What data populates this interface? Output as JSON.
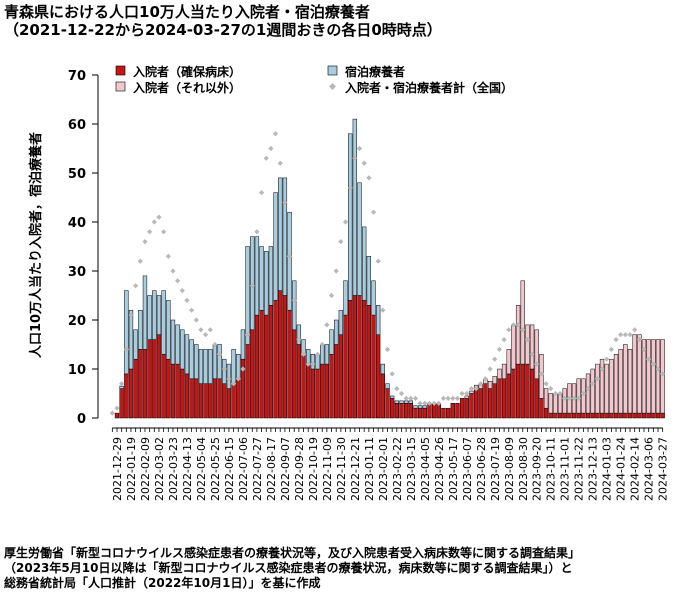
{
  "title": {
    "line1": "青森県における人口10万人当たり入院者・宿泊療養者",
    "line2": "（2021-12-22から2024-03-27の1週間おきの各日0時時点）"
  },
  "footer": {
    "line1": "厚生労働省「新型コロナウイルス感染症患者の療養状況等，及び入院患者受入病床数等に関する調査結果」",
    "line2": "（2023年5月10日以降は「新型コロナウイルス感染症患者の療養状況，病床数等に関する調査結果」）と",
    "line3": "総務省統計局「人口推計（2022年10月1日）」を基に作成"
  },
  "colors": {
    "hospital_severe": "#c81414",
    "hospital_other": "#f4c7cf",
    "hotel": "#a9cde0",
    "national_total": "#b8b8b8"
  },
  "chart_data": {
    "type": "bar",
    "stacked": true,
    "ylabel": "人口10万人当たり入院者，宿泊療養者",
    "ylim": [
      0,
      70
    ],
    "yticks": [
      0,
      10,
      20,
      30,
      40,
      50,
      60,
      70
    ],
    "grid": false,
    "legend_position": "top",
    "x_tick_labels": [
      "2021-12-29",
      "2022-01-19",
      "2022-02-09",
      "2022-03-02",
      "2022-03-23",
      "2022-04-13",
      "2022-05-04",
      "2022-05-25",
      "2022-06-15",
      "2022-07-06",
      "2022-07-27",
      "2022-08-17",
      "2022-09-07",
      "2022-09-28",
      "2022-10-19",
      "2022-11-09",
      "2022-11-30",
      "2022-12-21",
      "2023-01-11",
      "2023-02-01",
      "2023-02-22",
      "2023-03-15",
      "2023-04-05",
      "2023-04-26",
      "2023-05-17",
      "2023-06-07",
      "2023-06-28",
      "2023-07-19",
      "2023-08-09",
      "2023-08-30",
      "2023-09-20",
      "2023-10-11",
      "2023-11-01",
      "2023-11-22",
      "2023-12-13",
      "2024-01-03",
      "2024-01-24",
      "2024-02-14",
      "2024-03-06",
      "2024-03-27"
    ],
    "x": [
      "2021-12-22",
      "2021-12-29",
      "2022-01-05",
      "2022-01-12",
      "2022-01-19",
      "2022-01-26",
      "2022-02-02",
      "2022-02-09",
      "2022-02-16",
      "2022-02-23",
      "2022-03-02",
      "2022-03-09",
      "2022-03-16",
      "2022-03-23",
      "2022-03-30",
      "2022-04-06",
      "2022-04-13",
      "2022-04-20",
      "2022-04-27",
      "2022-05-04",
      "2022-05-11",
      "2022-05-18",
      "2022-05-25",
      "2022-06-01",
      "2022-06-08",
      "2022-06-15",
      "2022-06-22",
      "2022-06-29",
      "2022-07-06",
      "2022-07-13",
      "2022-07-20",
      "2022-07-27",
      "2022-08-03",
      "2022-08-10",
      "2022-08-17",
      "2022-08-24",
      "2022-08-31",
      "2022-09-07",
      "2022-09-14",
      "2022-09-21",
      "2022-09-28",
      "2022-10-05",
      "2022-10-12",
      "2022-10-19",
      "2022-10-26",
      "2022-11-02",
      "2022-11-09",
      "2022-11-16",
      "2022-11-23",
      "2022-11-30",
      "2022-12-07",
      "2022-12-14",
      "2022-12-21",
      "2022-12-28",
      "2023-01-04",
      "2023-01-11",
      "2023-01-18",
      "2023-01-25",
      "2023-02-01",
      "2023-02-08",
      "2023-02-15",
      "2023-02-22",
      "2023-03-01",
      "2023-03-08",
      "2023-03-15",
      "2023-03-22",
      "2023-03-29",
      "2023-04-05",
      "2023-04-12",
      "2023-04-19",
      "2023-04-26",
      "2023-05-03",
      "2023-05-10",
      "2023-05-17",
      "2023-05-24",
      "2023-05-31",
      "2023-06-07",
      "2023-06-14",
      "2023-06-21",
      "2023-06-28",
      "2023-07-05",
      "2023-07-12",
      "2023-07-19",
      "2023-07-26",
      "2023-08-02",
      "2023-08-09",
      "2023-08-16",
      "2023-08-23",
      "2023-08-30",
      "2023-09-06",
      "2023-09-13",
      "2023-09-20",
      "2023-09-27",
      "2023-10-04",
      "2023-10-11",
      "2023-10-18",
      "2023-10-25",
      "2023-11-01",
      "2023-11-08",
      "2023-11-15",
      "2023-11-22",
      "2023-11-29",
      "2023-12-06",
      "2023-12-13",
      "2023-12-20",
      "2023-12-27",
      "2024-01-03",
      "2024-01-10",
      "2024-01-17",
      "2024-01-24",
      "2024-01-31",
      "2024-02-07",
      "2024-02-14",
      "2024-02-21",
      "2024-02-28",
      "2024-03-06",
      "2024-03-13",
      "2024-03-20",
      "2024-03-27"
    ],
    "series": [
      {
        "name": "入院者（確保病床）",
        "values": [
          0,
          1,
          6,
          9,
          10,
          12,
          14,
          14,
          16,
          16,
          17,
          13,
          12,
          11,
          11,
          10,
          9,
          8,
          8,
          7,
          7,
          7,
          8,
          8,
          7,
          6,
          7,
          8,
          12,
          15,
          18,
          21,
          22,
          21,
          23,
          24,
          26,
          25,
          22,
          18,
          15,
          13,
          11,
          10,
          10,
          11,
          11,
          13,
          15,
          17,
          21,
          24,
          25,
          25,
          24,
          23,
          21,
          17,
          9,
          6,
          4,
          3,
          3,
          3,
          3,
          2,
          2,
          2,
          3,
          3,
          3,
          2,
          2,
          3,
          3,
          4,
          4,
          5,
          6,
          6,
          7,
          6,
          7,
          8,
          8,
          9,
          10,
          11,
          11,
          11,
          10,
          8,
          4,
          2,
          1,
          1,
          1,
          1,
          1,
          1,
          1,
          1,
          1,
          1,
          1,
          1,
          1,
          1,
          1,
          1,
          1,
          1,
          1,
          1,
          1,
          1,
          1,
          1,
          1
        ]
      },
      {
        "name": "入院者（それ以外）",
        "values": [
          0,
          0,
          0,
          0,
          0,
          0,
          0,
          0,
          0,
          0,
          0,
          0,
          0,
          0,
          0,
          0,
          0,
          0,
          0,
          0,
          0,
          0,
          0,
          0,
          0,
          0,
          0,
          0,
          0,
          0,
          0,
          0,
          0,
          0,
          0,
          0,
          0,
          0,
          0,
          0,
          0,
          0,
          0,
          0,
          0,
          0,
          0,
          0,
          0,
          0,
          0,
          0,
          0,
          0,
          0,
          0,
          0,
          0,
          0,
          0,
          0,
          0,
          0,
          0,
          0,
          0,
          0,
          0,
          0,
          0,
          0,
          0,
          0,
          0,
          0,
          0,
          0.5,
          0.5,
          0.7,
          1,
          1,
          1.5,
          1.5,
          2,
          3,
          5,
          9,
          12,
          17,
          8,
          9,
          10,
          9,
          4,
          4,
          4,
          4,
          5,
          6,
          6,
          7,
          7,
          8,
          9,
          10,
          11,
          10,
          11,
          12,
          13,
          14,
          13,
          16,
          16,
          15,
          15,
          15,
          15,
          15
        ]
      },
      {
        "name": "宿泊療養者",
        "values": [
          0,
          0,
          0.5,
          17,
          12,
          6,
          8,
          15,
          9,
          10,
          8,
          13,
          12,
          9,
          8,
          8,
          8,
          8,
          7,
          7,
          7,
          7,
          7,
          7,
          5,
          5,
          7,
          5,
          6,
          20,
          19,
          16,
          13,
          13,
          12,
          22,
          23,
          24,
          20,
          10,
          4,
          3,
          3,
          3,
          3,
          4,
          4,
          5,
          5,
          5,
          7,
          34,
          36,
          23,
          15,
          10,
          7,
          6,
          2,
          1,
          0.5,
          0.5,
          0.5,
          0.5,
          0.5,
          0.5,
          0.5,
          0.5,
          0,
          0,
          0,
          0,
          0,
          0,
          0,
          0,
          0,
          0,
          0,
          0,
          0,
          0,
          0,
          0,
          0,
          0,
          0,
          0,
          0,
          0,
          0,
          0,
          0,
          0,
          0,
          0,
          0,
          0,
          0,
          0,
          0,
          0,
          0,
          0,
          0,
          0,
          0,
          0,
          0,
          0,
          0,
          0,
          0,
          0,
          0,
          0,
          0,
          0,
          0
        ]
      },
      {
        "name": "入院者・宿泊療養者計（全国）",
        "kind": "points",
        "values": [
          1,
          2,
          7,
          14,
          21,
          27,
          32,
          36,
          38,
          40,
          41,
          38,
          33,
          30,
          28,
          26,
          24,
          22,
          20,
          18,
          17,
          18,
          15,
          13,
          10,
          8,
          7,
          8,
          10,
          17,
          27,
          38,
          46,
          53,
          55,
          58,
          52,
          44,
          33,
          24,
          16,
          13,
          11,
          11,
          13,
          15,
          19,
          25,
          30,
          36,
          40,
          47,
          53,
          55,
          52,
          49,
          42,
          32,
          22,
          14,
          9,
          6,
          5,
          4,
          4,
          4,
          3,
          3,
          3,
          3,
          3,
          4,
          4,
          4,
          4,
          5,
          5,
          6,
          6,
          7,
          8,
          10,
          12,
          14,
          16,
          18,
          19,
          19,
          18,
          16,
          13,
          11,
          9,
          7,
          6,
          5,
          5,
          4,
          4,
          4,
          4,
          5,
          6,
          7,
          8,
          10,
          12,
          14,
          16,
          17,
          17,
          17,
          18,
          16,
          14,
          12,
          11,
          10,
          9
        ]
      }
    ]
  },
  "legend": {
    "items": [
      {
        "label": "入院者（確保病床）",
        "kind": "box",
        "color": "#c81414"
      },
      {
        "label": "入院者（それ以外）",
        "kind": "box",
        "color": "#f4c7cf"
      },
      {
        "label": "宿泊療養者",
        "kind": "box",
        "color": "#a9cde0"
      },
      {
        "label": "入院者・宿泊療養者計（全国）",
        "kind": "point",
        "color": "#b8b8b8"
      }
    ]
  }
}
